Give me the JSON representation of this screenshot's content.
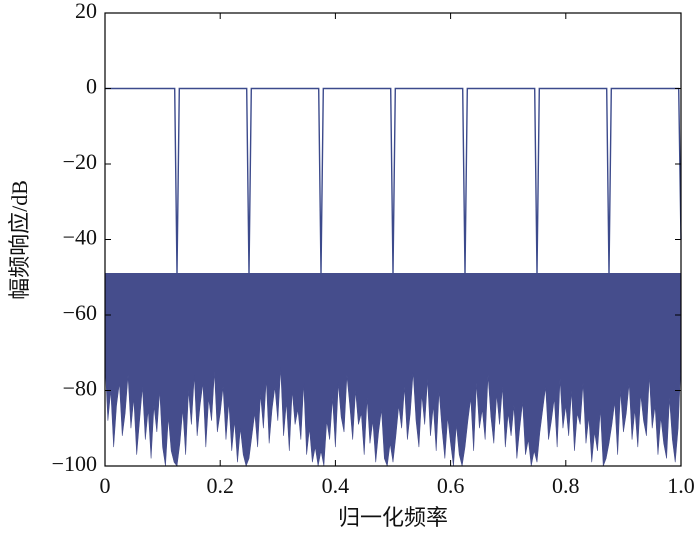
{
  "chart_data": {
    "type": "line",
    "xlabel": "归一化频率",
    "ylabel": "幅频响应/dB",
    "xlim": [
      0,
      1
    ],
    "ylim": [
      -100,
      20
    ],
    "xticks": [
      0,
      0.2,
      0.4,
      0.6,
      0.8,
      {
        "value": 1,
        "label": "1.0"
      }
    ],
    "yticks": [
      {
        "value": -100,
        "label": "−100"
      },
      {
        "value": -80,
        "label": "−80"
      },
      {
        "value": -60,
        "label": "−60"
      },
      {
        "value": -40,
        "label": "−40"
      },
      {
        "value": -20,
        "label": "−20"
      },
      0,
      20
    ],
    "series": [
      {
        "color": "#3c4a8c",
        "x": [
          0,
          0.121,
          0.125,
          0.129,
          0.246,
          0.25,
          0.254,
          0.371,
          0.375,
          0.379,
          0.496,
          0.5,
          0.504,
          0.621,
          0.625,
          0.629,
          0.746,
          0.75,
          0.754,
          0.871,
          0.875,
          0.879,
          0.996,
          1
        ],
        "values": [
          0,
          0,
          -49,
          0,
          0,
          -49,
          0,
          0,
          -49,
          0,
          0,
          -49,
          0,
          0,
          -49,
          0,
          0,
          -49,
          0,
          0,
          -49,
          0,
          0,
          -40
        ]
      },
      {
        "color": "#454d8c",
        "fill_to": -49,
        "x": [
          0,
          0.005,
          0.01,
          0.015,
          0.02,
          0.025,
          0.03,
          0.035,
          0.04,
          0.045,
          0.05,
          0.055,
          0.06,
          0.065,
          0.07,
          0.075,
          0.08,
          0.085,
          0.09,
          0.095,
          0.1,
          0.105,
          0.11,
          0.115,
          0.12,
          0.125,
          0.13,
          0.135,
          0.14,
          0.145,
          0.15,
          0.155,
          0.16,
          0.165,
          0.17,
          0.175,
          0.18,
          0.185,
          0.19,
          0.195,
          0.2,
          0.205,
          0.21,
          0.215,
          0.22,
          0.225,
          0.23,
          0.235,
          0.24,
          0.245,
          0.25,
          0.255,
          0.26,
          0.265,
          0.27,
          0.275,
          0.28,
          0.285,
          0.29,
          0.295,
          0.3,
          0.305,
          0.31,
          0.315,
          0.32,
          0.325,
          0.33,
          0.335,
          0.34,
          0.345,
          0.35,
          0.355,
          0.36,
          0.365,
          0.37,
          0.375,
          0.38,
          0.385,
          0.39,
          0.395,
          0.4,
          0.405,
          0.41,
          0.415,
          0.42,
          0.425,
          0.43,
          0.435,
          0.44,
          0.445,
          0.45,
          0.455,
          0.46,
          0.465,
          0.47,
          0.475,
          0.48,
          0.485,
          0.49,
          0.495,
          0.5,
          0.505,
          0.51,
          0.515,
          0.52,
          0.525,
          0.53,
          0.535,
          0.54,
          0.545,
          0.55,
          0.555,
          0.56,
          0.565,
          0.57,
          0.575,
          0.58,
          0.585,
          0.59,
          0.595,
          0.6,
          0.605,
          0.61,
          0.615,
          0.62,
          0.625,
          0.63,
          0.635,
          0.64,
          0.645,
          0.65,
          0.655,
          0.66,
          0.665,
          0.67,
          0.675,
          0.68,
          0.685,
          0.69,
          0.695,
          0.7,
          0.705,
          0.71,
          0.715,
          0.72,
          0.725,
          0.73,
          0.735,
          0.74,
          0.745,
          0.75,
          0.755,
          0.76,
          0.765,
          0.77,
          0.775,
          0.78,
          0.785,
          0.79,
          0.795,
          0.8,
          0.805,
          0.81,
          0.815,
          0.82,
          0.825,
          0.83,
          0.835,
          0.84,
          0.845,
          0.85,
          0.855,
          0.86,
          0.865,
          0.87,
          0.875,
          0.88,
          0.885,
          0.89,
          0.895,
          0.9,
          0.905,
          0.91,
          0.915,
          0.92,
          0.925,
          0.93,
          0.935,
          0.94,
          0.945,
          0.95,
          0.955,
          0.96,
          0.965,
          0.97,
          0.975,
          0.98,
          0.985,
          0.99,
          0.995,
          1
        ],
        "values": [
          -72,
          -88,
          -80,
          -95,
          -84,
          -78,
          -92,
          -86,
          -76,
          -90,
          -82,
          -97,
          -88,
          -79,
          -93,
          -85,
          -98,
          -84,
          -91,
          -80,
          -95,
          -100,
          -87,
          -96,
          -99,
          -100,
          -94,
          -85,
          -97,
          -80,
          -89,
          -76,
          -92,
          -84,
          -78,
          -95,
          -82,
          -88,
          -75,
          -91,
          -86,
          -79,
          -93,
          -83,
          -96,
          -88,
          -99,
          -90,
          -97,
          -100,
          -98,
          -92,
          -86,
          -95,
          -81,
          -90,
          -77,
          -94,
          -85,
          -79,
          -88,
          -74,
          -92,
          -83,
          -96,
          -80,
          -89,
          -85,
          -93,
          -78,
          -97,
          -90,
          -99,
          -95,
          -100,
          -96,
          -100,
          -88,
          -93,
          -82,
          -95,
          -78,
          -87,
          -91,
          -76,
          -84,
          -93,
          -80,
          -89,
          -86,
          -97,
          -82,
          -94,
          -88,
          -99,
          -91,
          -85,
          -98,
          -100,
          -94,
          -99,
          -92,
          -84,
          -90,
          -79,
          -93,
          -86,
          -75,
          -88,
          -95,
          -81,
          -89,
          -77,
          -92,
          -84,
          -96,
          -80,
          -90,
          -98,
          -87,
          -94,
          -100,
          -89,
          -97,
          -100,
          -95,
          -88,
          -82,
          -96,
          -78,
          -90,
          -85,
          -93,
          -76,
          -87,
          -94,
          -81,
          -89,
          -79,
          -95,
          -86,
          -92,
          -84,
          -98,
          -90,
          -83,
          -97,
          -93,
          -100,
          -96,
          -99,
          -91,
          -85,
          -79,
          -93,
          -88,
          -82,
          -95,
          -77,
          -90,
          -84,
          -92,
          -80,
          -96,
          -86,
          -89,
          -78,
          -94,
          -87,
          -99,
          -91,
          -96,
          -85,
          -100,
          -98,
          -94,
          -89,
          -83,
          -97,
          -80,
          -91,
          -86,
          -78,
          -93,
          -85,
          -95,
          -81,
          -88,
          -92,
          -76,
          -90,
          -84,
          -97,
          -87,
          -94,
          -98,
          -82,
          -93,
          -99,
          -90,
          -72
        ]
      }
    ]
  }
}
